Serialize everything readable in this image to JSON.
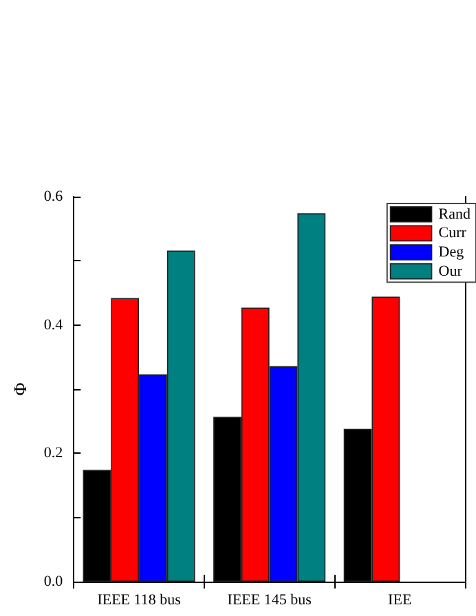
{
  "chart_data": {
    "type": "bar",
    "ylabel": "Φ",
    "categories": [
      "IEEE 118 bus",
      "IEEE 145 bus",
      "IEE"
    ],
    "series": [
      {
        "name": "Rand",
        "color": "#000000",
        "values": [
          0.174,
          0.257,
          0.238
        ]
      },
      {
        "name": "Curr",
        "color": "#ff0000",
        "values": [
          0.442,
          0.427,
          0.444
        ]
      },
      {
        "name": "Deg",
        "color": "#0000ff",
        "values": [
          0.323,
          0.336,
          null
        ]
      },
      {
        "name": "Our",
        "color": "#008080",
        "values": [
          0.516,
          0.574,
          null
        ]
      }
    ],
    "ylim": [
      0,
      0.6
    ],
    "yticks": [
      {
        "value": 0,
        "label": "0.0"
      },
      {
        "value": 0.1,
        "label": null
      },
      0.2,
      {
        "value": 0.3,
        "label": null
      },
      0.4,
      {
        "value": 0.5,
        "label": null
      },
      0.6
    ],
    "legend": "top right",
    "grid": false
  }
}
